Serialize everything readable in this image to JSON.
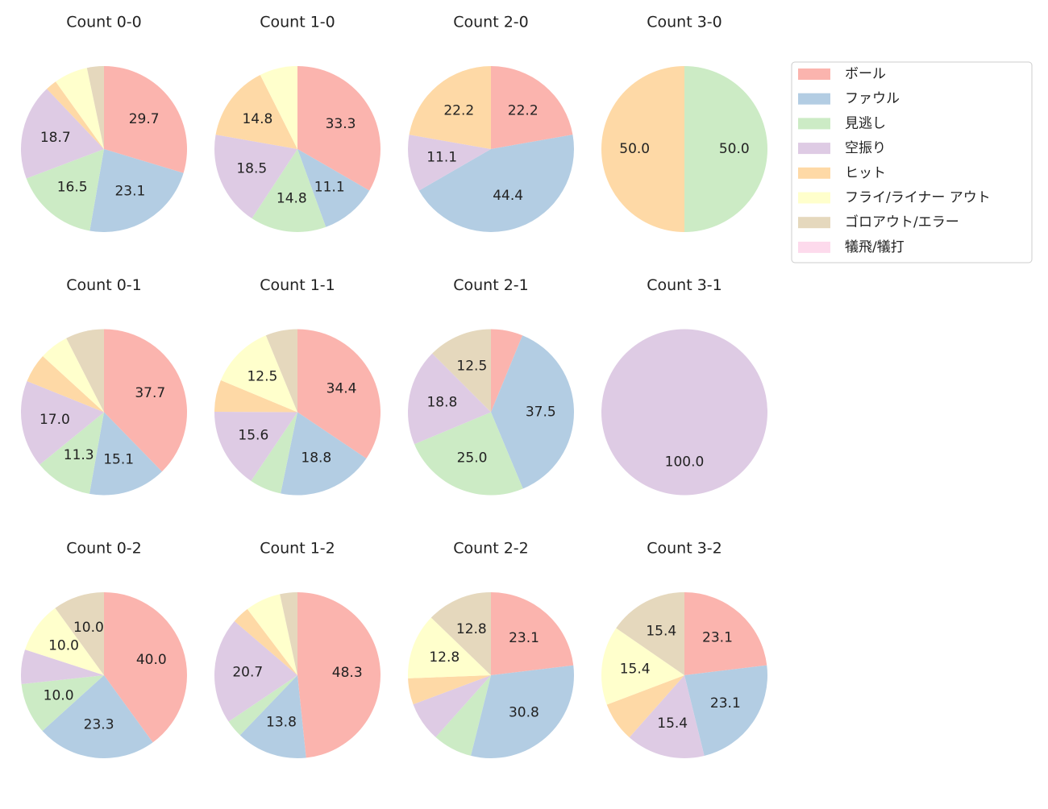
{
  "legend": {
    "labels": [
      "ボール",
      "ファウル",
      "見逃し",
      "空振り",
      "ヒット",
      "フライ/ライナー アウト",
      "ゴロアウト/エラー",
      "犠飛/犠打"
    ],
    "colors": [
      "#fbb4ae",
      "#b3cde3",
      "#ccebc5",
      "#decbe4",
      "#fed9a6",
      "#ffffcc",
      "#e5d8bd",
      "#fddaec"
    ]
  },
  "chart_data": [
    {
      "type": "pie",
      "title": "Count 0-0",
      "values": [
        29.7,
        23.1,
        16.5,
        18.7,
        2.2,
        6.6,
        3.3,
        0
      ],
      "value_labels": [
        "29.7",
        "23.1",
        "16.5",
        "18.7",
        null,
        null,
        null,
        null
      ]
    },
    {
      "type": "pie",
      "title": "Count 1-0",
      "values": [
        33.3,
        11.1,
        14.8,
        18.5,
        14.8,
        7.4,
        0,
        0
      ],
      "value_labels": [
        "33.3",
        "11.1",
        "14.8",
        "18.5",
        "14.8",
        null,
        null,
        null
      ]
    },
    {
      "type": "pie",
      "title": "Count 2-0",
      "values": [
        22.2,
        44.4,
        0,
        11.1,
        22.2,
        0,
        0,
        0
      ],
      "value_labels": [
        "22.2",
        "44.4",
        null,
        "11.1",
        "22.2",
        null,
        null,
        null
      ]
    },
    {
      "type": "pie",
      "title": "Count 3-0",
      "values": [
        0,
        0,
        50,
        0,
        50,
        0,
        0,
        0
      ],
      "value_labels": [
        null,
        null,
        "50.0",
        null,
        "50.0",
        null,
        null,
        null
      ]
    },
    {
      "type": "pie",
      "title": "Count 0-1",
      "values": [
        37.7,
        15.1,
        11.3,
        17.0,
        5.7,
        5.7,
        7.5,
        0
      ],
      "value_labels": [
        "37.7",
        "15.1",
        "11.3",
        "17.0",
        null,
        null,
        null,
        null
      ]
    },
    {
      "type": "pie",
      "title": "Count 1-1",
      "values": [
        34.4,
        18.8,
        6.2,
        15.6,
        6.2,
        12.5,
        6.2,
        0
      ],
      "value_labels": [
        "34.4",
        "18.8",
        null,
        "15.6",
        null,
        "12.5",
        null,
        null
      ]
    },
    {
      "type": "pie",
      "title": "Count 2-1",
      "values": [
        6.2,
        37.5,
        25.0,
        18.8,
        0,
        0,
        12.5,
        0
      ],
      "value_labels": [
        null,
        "37.5",
        "25.0",
        "18.8",
        null,
        null,
        "12.5",
        null
      ]
    },
    {
      "type": "pie",
      "title": "Count 3-1",
      "values": [
        0,
        0,
        0,
        100,
        0,
        0,
        0,
        0
      ],
      "value_labels": [
        null,
        null,
        null,
        "100.0",
        null,
        null,
        null,
        null
      ]
    },
    {
      "type": "pie",
      "title": "Count 0-2",
      "values": [
        40.0,
        23.3,
        10.0,
        6.7,
        0,
        10.0,
        10.0,
        0
      ],
      "value_labels": [
        "40.0",
        "23.3",
        "10.0",
        null,
        null,
        "10.0",
        "10.0",
        null
      ]
    },
    {
      "type": "pie",
      "title": "Count 1-2",
      "values": [
        48.3,
        13.8,
        3.4,
        20.7,
        3.4,
        6.9,
        3.4,
        0
      ],
      "value_labels": [
        "48.3",
        "13.8",
        null,
        "20.7",
        null,
        null,
        null,
        null
      ]
    },
    {
      "type": "pie",
      "title": "Count 2-2",
      "values": [
        23.1,
        30.8,
        7.7,
        7.7,
        5.1,
        12.8,
        12.8,
        0
      ],
      "value_labels": [
        "23.1",
        "30.8",
        null,
        null,
        null,
        "12.8",
        "12.8",
        null
      ]
    },
    {
      "type": "pie",
      "title": "Count 3-2",
      "values": [
        23.1,
        23.1,
        0,
        15.4,
        7.7,
        15.4,
        15.4,
        0
      ],
      "value_labels": [
        "23.1",
        "23.1",
        null,
        "15.4",
        null,
        "15.4",
        "15.4",
        null
      ]
    }
  ]
}
